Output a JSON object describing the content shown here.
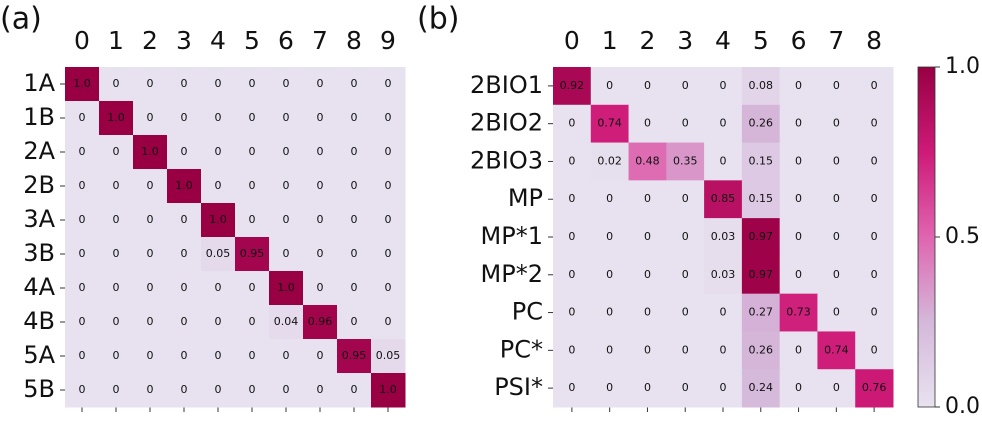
{
  "chart_data": [
    {
      "type": "heatmap",
      "title": "(a)",
      "x": [
        "0",
        "1",
        "2",
        "3",
        "4",
        "5",
        "6",
        "7",
        "8",
        "9"
      ],
      "y": [
        "1A",
        "1B",
        "2A",
        "2B",
        "3A",
        "3B",
        "4A",
        "4B",
        "5A",
        "5B"
      ],
      "values": [
        [
          1,
          0,
          0,
          0,
          0,
          0,
          0,
          0,
          0,
          0
        ],
        [
          0,
          1,
          0,
          0,
          0,
          0,
          0,
          0,
          0,
          0
        ],
        [
          0,
          0,
          1,
          0,
          0,
          0,
          0,
          0,
          0,
          0
        ],
        [
          0,
          0,
          0,
          1,
          0,
          0,
          0,
          0,
          0,
          0
        ],
        [
          0,
          0,
          0,
          0,
          1,
          0,
          0,
          0,
          0,
          0
        ],
        [
          0,
          0,
          0,
          0,
          0.05,
          0.95,
          0,
          0,
          0,
          0
        ],
        [
          0,
          0,
          0,
          0,
          0,
          0,
          1,
          0,
          0,
          0
        ],
        [
          0,
          0,
          0,
          0,
          0,
          0,
          0.04,
          0.96,
          0,
          0
        ],
        [
          0,
          0,
          0,
          0,
          0,
          0,
          0,
          0,
          0.95,
          0.05
        ],
        [
          0,
          0,
          0,
          0,
          0,
          0,
          0,
          0,
          0,
          1
        ]
      ],
      "value_labels": [
        [
          "1.0",
          "0",
          "0",
          "0",
          "0",
          "0",
          "0",
          "0",
          "0",
          "0"
        ],
        [
          "0",
          "1.0",
          "0",
          "0",
          "0",
          "0",
          "0",
          "0",
          "0",
          "0"
        ],
        [
          "0",
          "0",
          "1.0",
          "0",
          "0",
          "0",
          "0",
          "0",
          "0",
          "0"
        ],
        [
          "0",
          "0",
          "0",
          "1.0",
          "0",
          "0",
          "0",
          "0",
          "0",
          "0"
        ],
        [
          "0",
          "0",
          "0",
          "0",
          "1.0",
          "0",
          "0",
          "0",
          "0",
          "0"
        ],
        [
          "0",
          "0",
          "0",
          "0",
          "0.05",
          "0.95",
          "0",
          "0",
          "0",
          "0"
        ],
        [
          "0",
          "0",
          "0",
          "0",
          "0",
          "0",
          "1.0",
          "0",
          "0",
          "0"
        ],
        [
          "0",
          "0",
          "0",
          "0",
          "0",
          "0",
          "0.04",
          "0.96",
          "0",
          "0"
        ],
        [
          "0",
          "0",
          "0",
          "0",
          "0",
          "0",
          "0",
          "0",
          "0.95",
          "0.05"
        ],
        [
          "0",
          "0",
          "0",
          "0",
          "0",
          "0",
          "0",
          "0",
          "0",
          "1.0"
        ]
      ]
    },
    {
      "type": "heatmap",
      "title": "(b)",
      "x": [
        "0",
        "1",
        "2",
        "3",
        "4",
        "5",
        "6",
        "7",
        "8"
      ],
      "y": [
        "2BIO1",
        "2BIO2",
        "2BIO3",
        "MP",
        "MP*1",
        "MP*2",
        "PC",
        "PC*",
        "PSI*"
      ],
      "values": [
        [
          0.92,
          0,
          0,
          0,
          0,
          0.08,
          0,
          0,
          0
        ],
        [
          0,
          0.74,
          0,
          0,
          0,
          0.26,
          0,
          0,
          0
        ],
        [
          0,
          0.02,
          0.48,
          0.35,
          0,
          0.15,
          0,
          0,
          0
        ],
        [
          0,
          0,
          0,
          0,
          0.85,
          0.15,
          0,
          0,
          0
        ],
        [
          0,
          0,
          0,
          0,
          0.03,
          0.97,
          0,
          0,
          0
        ],
        [
          0,
          0,
          0,
          0,
          0.03,
          0.97,
          0,
          0,
          0
        ],
        [
          0,
          0,
          0,
          0,
          0,
          0.27,
          0.73,
          0,
          0
        ],
        [
          0,
          0,
          0,
          0,
          0,
          0.26,
          0,
          0.74,
          0
        ],
        [
          0,
          0,
          0,
          0,
          0,
          0.24,
          0,
          0,
          0.76
        ]
      ],
      "value_labels": [
        [
          "0.92",
          "0",
          "0",
          "0",
          "0",
          "0.08",
          "0",
          "0",
          "0"
        ],
        [
          "0",
          "0.74",
          "0",
          "0",
          "0",
          "0.26",
          "0",
          "0",
          "0"
        ],
        [
          "0",
          "0.02",
          "0.48",
          "0.35",
          "0",
          "0.15",
          "0",
          "0",
          "0"
        ],
        [
          "0",
          "0",
          "0",
          "0",
          "0.85",
          "0.15",
          "0",
          "0",
          "0"
        ],
        [
          "0",
          "0",
          "0",
          "0",
          "0.03",
          "0.97",
          "0",
          "0",
          "0"
        ],
        [
          "0",
          "0",
          "0",
          "0",
          "0.03",
          "0.97",
          "0",
          "0",
          "0"
        ],
        [
          "0",
          "0",
          "0",
          "0",
          "0",
          "0.27",
          "0.73",
          "0",
          "0"
        ],
        [
          "0",
          "0",
          "0",
          "0",
          "0",
          "0.26",
          "0",
          "0.74",
          "0"
        ],
        [
          "0",
          "0",
          "0",
          "0",
          "0",
          "0.24",
          "0",
          "0",
          "0.76"
        ]
      ],
      "colorbar": {
        "lim": [
          0,
          1
        ],
        "ticks": [
          {
            "value": 0,
            "label": "0.0"
          },
          {
            "value": 0.5,
            "label": "0.5"
          },
          {
            "value": 1,
            "label": "1.0"
          }
        ]
      }
    }
  ],
  "colormap": [
    "#e8e2f0",
    "#d5b8da",
    "#df65b0",
    "#ce1a78",
    "#980043"
  ]
}
